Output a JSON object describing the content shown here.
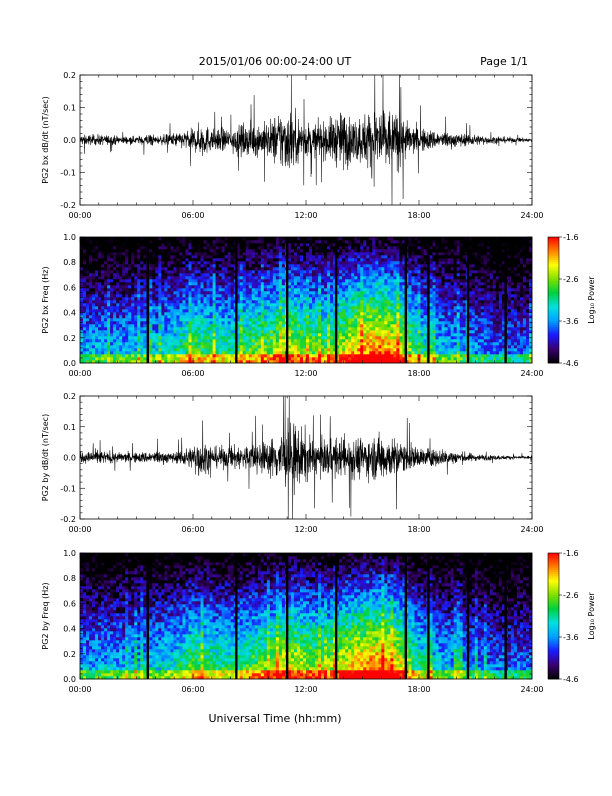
{
  "header": {
    "title": "2015/01/06  00:00-24:00 UT",
    "page_label": "Page 1/1"
  },
  "footer": {
    "xlabel": "Universal Time (hh:mm)"
  },
  "colors": {
    "trace": "#000000",
    "spectrogram_background": "#000000",
    "colormap": [
      "#000000",
      "#3a0070",
      "#1a1aff",
      "#00a0ff",
      "#00e0e0",
      "#00d040",
      "#80e000",
      "#ffff00",
      "#ff8000",
      "#ff0000"
    ]
  },
  "chart_data": [
    {
      "type": "line",
      "ylabel": "PG2 bx dB/dt (nT/sec)",
      "x_unit": "hours UT",
      "xlim": [
        0,
        24
      ],
      "xticks": [
        0,
        6,
        12,
        18,
        24
      ],
      "xtick_labels": [
        "00:00",
        "06:00",
        "12:00",
        "18:00",
        "24:00"
      ],
      "ylim": [
        -0.2,
        0.2
      ],
      "yticks": [
        -0.2,
        -0.1,
        0.0,
        0.1,
        0.2
      ],
      "ytick_labels": [
        "-0.2",
        "-0.1",
        "0.0",
        "0.1",
        "0.2"
      ],
      "grid": false,
      "series": [
        {
          "envelope_x": [
            0,
            1,
            2,
            3,
            3.8,
            4,
            5,
            6,
            6.5,
            7,
            8,
            9,
            10,
            10.5,
            11,
            11.5,
            12,
            12.5,
            13,
            13.5,
            14,
            14.5,
            15,
            15.5,
            16,
            16.5,
            17,
            17.5,
            18,
            19,
            20,
            21,
            22,
            23,
            24
          ],
          "envelope_amplitude": [
            0.03,
            0.03,
            0.025,
            0.02,
            0.04,
            0.02,
            0.04,
            0.06,
            0.1,
            0.06,
            0.07,
            0.09,
            0.1,
            0.16,
            0.19,
            0.14,
            0.1,
            0.09,
            0.1,
            0.14,
            0.17,
            0.12,
            0.14,
            0.19,
            0.2,
            0.17,
            0.15,
            0.09,
            0.07,
            0.05,
            0.04,
            0.03,
            0.02,
            0.015,
            0.01
          ]
        }
      ]
    },
    {
      "type": "heatmap",
      "ylabel": "PG2 bx Freq (Hz)",
      "colorbar_label": "Log₁₀ Power",
      "x_unit": "hours UT",
      "xlim": [
        0,
        24
      ],
      "xticks": [
        0,
        6,
        12,
        18,
        24
      ],
      "xtick_labels": [
        "00:00",
        "06:00",
        "12:00",
        "18:00",
        "24:00"
      ],
      "ylim": [
        0.0,
        1.0
      ],
      "yticks": [
        0.0,
        0.2,
        0.4,
        0.6,
        0.8,
        1.0
      ],
      "ytick_labels": [
        "0.0",
        "0.2",
        "0.4",
        "0.6",
        "0.8",
        "1.0"
      ],
      "zlim": [
        -4.6,
        -1.6
      ],
      "colorbar_ticks": [
        -1.6,
        -2.6,
        -3.6,
        -4.6
      ],
      "colorbar_tick_labels": [
        "-1.6",
        "-2.6",
        "-3.6",
        "-4.6"
      ],
      "activity_x": [
        0,
        2,
        4,
        5,
        6,
        7,
        8,
        9,
        10,
        11,
        12,
        13,
        14,
        15,
        16,
        17,
        18,
        19,
        20,
        21,
        22,
        23,
        24
      ],
      "activity_level": [
        0.3,
        0.3,
        0.35,
        0.4,
        0.55,
        0.5,
        0.45,
        0.55,
        0.6,
        0.75,
        0.6,
        0.55,
        0.7,
        0.85,
        0.9,
        0.75,
        0.45,
        0.35,
        0.3,
        0.25,
        0.2,
        0.2,
        0.2
      ],
      "data_gaps_hours": [
        3.6,
        8.3,
        11.0,
        13.6,
        17.3,
        18.5,
        20.6,
        22.6
      ]
    },
    {
      "type": "line",
      "ylabel": "PG2 by dB/dt (nT/sec)",
      "x_unit": "hours UT",
      "xlim": [
        0,
        24
      ],
      "xticks": [
        0,
        6,
        12,
        18,
        24
      ],
      "xtick_labels": [
        "00:00",
        "06:00",
        "12:00",
        "18:00",
        "24:00"
      ],
      "ylim": [
        -0.2,
        0.2
      ],
      "yticks": [
        -0.2,
        -0.1,
        0.0,
        0.1,
        0.2
      ],
      "ytick_labels": [
        "-0.2",
        "-0.1",
        "0.0",
        "0.1",
        "0.2"
      ],
      "grid": false,
      "series": [
        {
          "envelope_x": [
            0,
            1,
            2,
            3,
            4,
            5,
            6,
            6.3,
            7,
            8,
            9,
            10,
            10.5,
            11,
            11.5,
            12,
            12.5,
            13,
            14,
            15,
            15.5,
            16,
            16.5,
            17,
            17.5,
            18,
            19,
            20,
            21,
            22,
            23,
            24
          ],
          "envelope_amplitude": [
            0.03,
            0.04,
            0.03,
            0.03,
            0.04,
            0.03,
            0.07,
            0.13,
            0.06,
            0.07,
            0.08,
            0.1,
            0.15,
            0.2,
            0.2,
            0.15,
            0.1,
            0.1,
            0.12,
            0.12,
            0.12,
            0.15,
            0.12,
            0.1,
            0.08,
            0.06,
            0.05,
            0.04,
            0.02,
            0.015,
            0.01,
            0.01
          ]
        }
      ]
    },
    {
      "type": "heatmap",
      "ylabel": "PG2 by Freq (Hz)",
      "colorbar_label": "Log₁₀ Power",
      "x_unit": "hours UT",
      "xlim": [
        0,
        24
      ],
      "xticks": [
        0,
        6,
        12,
        18,
        24
      ],
      "xtick_labels": [
        "00:00",
        "06:00",
        "12:00",
        "18:00",
        "24:00"
      ],
      "ylim": [
        0.0,
        1.0
      ],
      "yticks": [
        0.0,
        0.2,
        0.4,
        0.6,
        0.8,
        1.0
      ],
      "ytick_labels": [
        "0.0",
        "0.2",
        "0.4",
        "0.6",
        "0.8",
        "1.0"
      ],
      "zlim": [
        -4.6,
        -1.6
      ],
      "colorbar_ticks": [
        -1.6,
        -2.6,
        -3.6,
        -4.6
      ],
      "colorbar_tick_labels": [
        "-1.6",
        "-2.6",
        "-3.6",
        "-4.6"
      ],
      "activity_x": [
        0,
        2,
        4,
        5,
        6,
        7,
        8,
        9,
        10,
        11,
        12,
        13,
        14,
        15,
        16,
        17,
        18,
        19,
        20,
        21,
        22,
        23,
        24
      ],
      "activity_level": [
        0.3,
        0.3,
        0.35,
        0.4,
        0.55,
        0.5,
        0.45,
        0.55,
        0.6,
        0.75,
        0.65,
        0.6,
        0.75,
        0.85,
        0.9,
        0.75,
        0.45,
        0.35,
        0.3,
        0.25,
        0.2,
        0.2,
        0.2
      ],
      "data_gaps_hours": [
        3.6,
        8.3,
        11.0,
        13.6,
        17.3,
        18.5,
        20.6,
        22.6
      ]
    }
  ]
}
